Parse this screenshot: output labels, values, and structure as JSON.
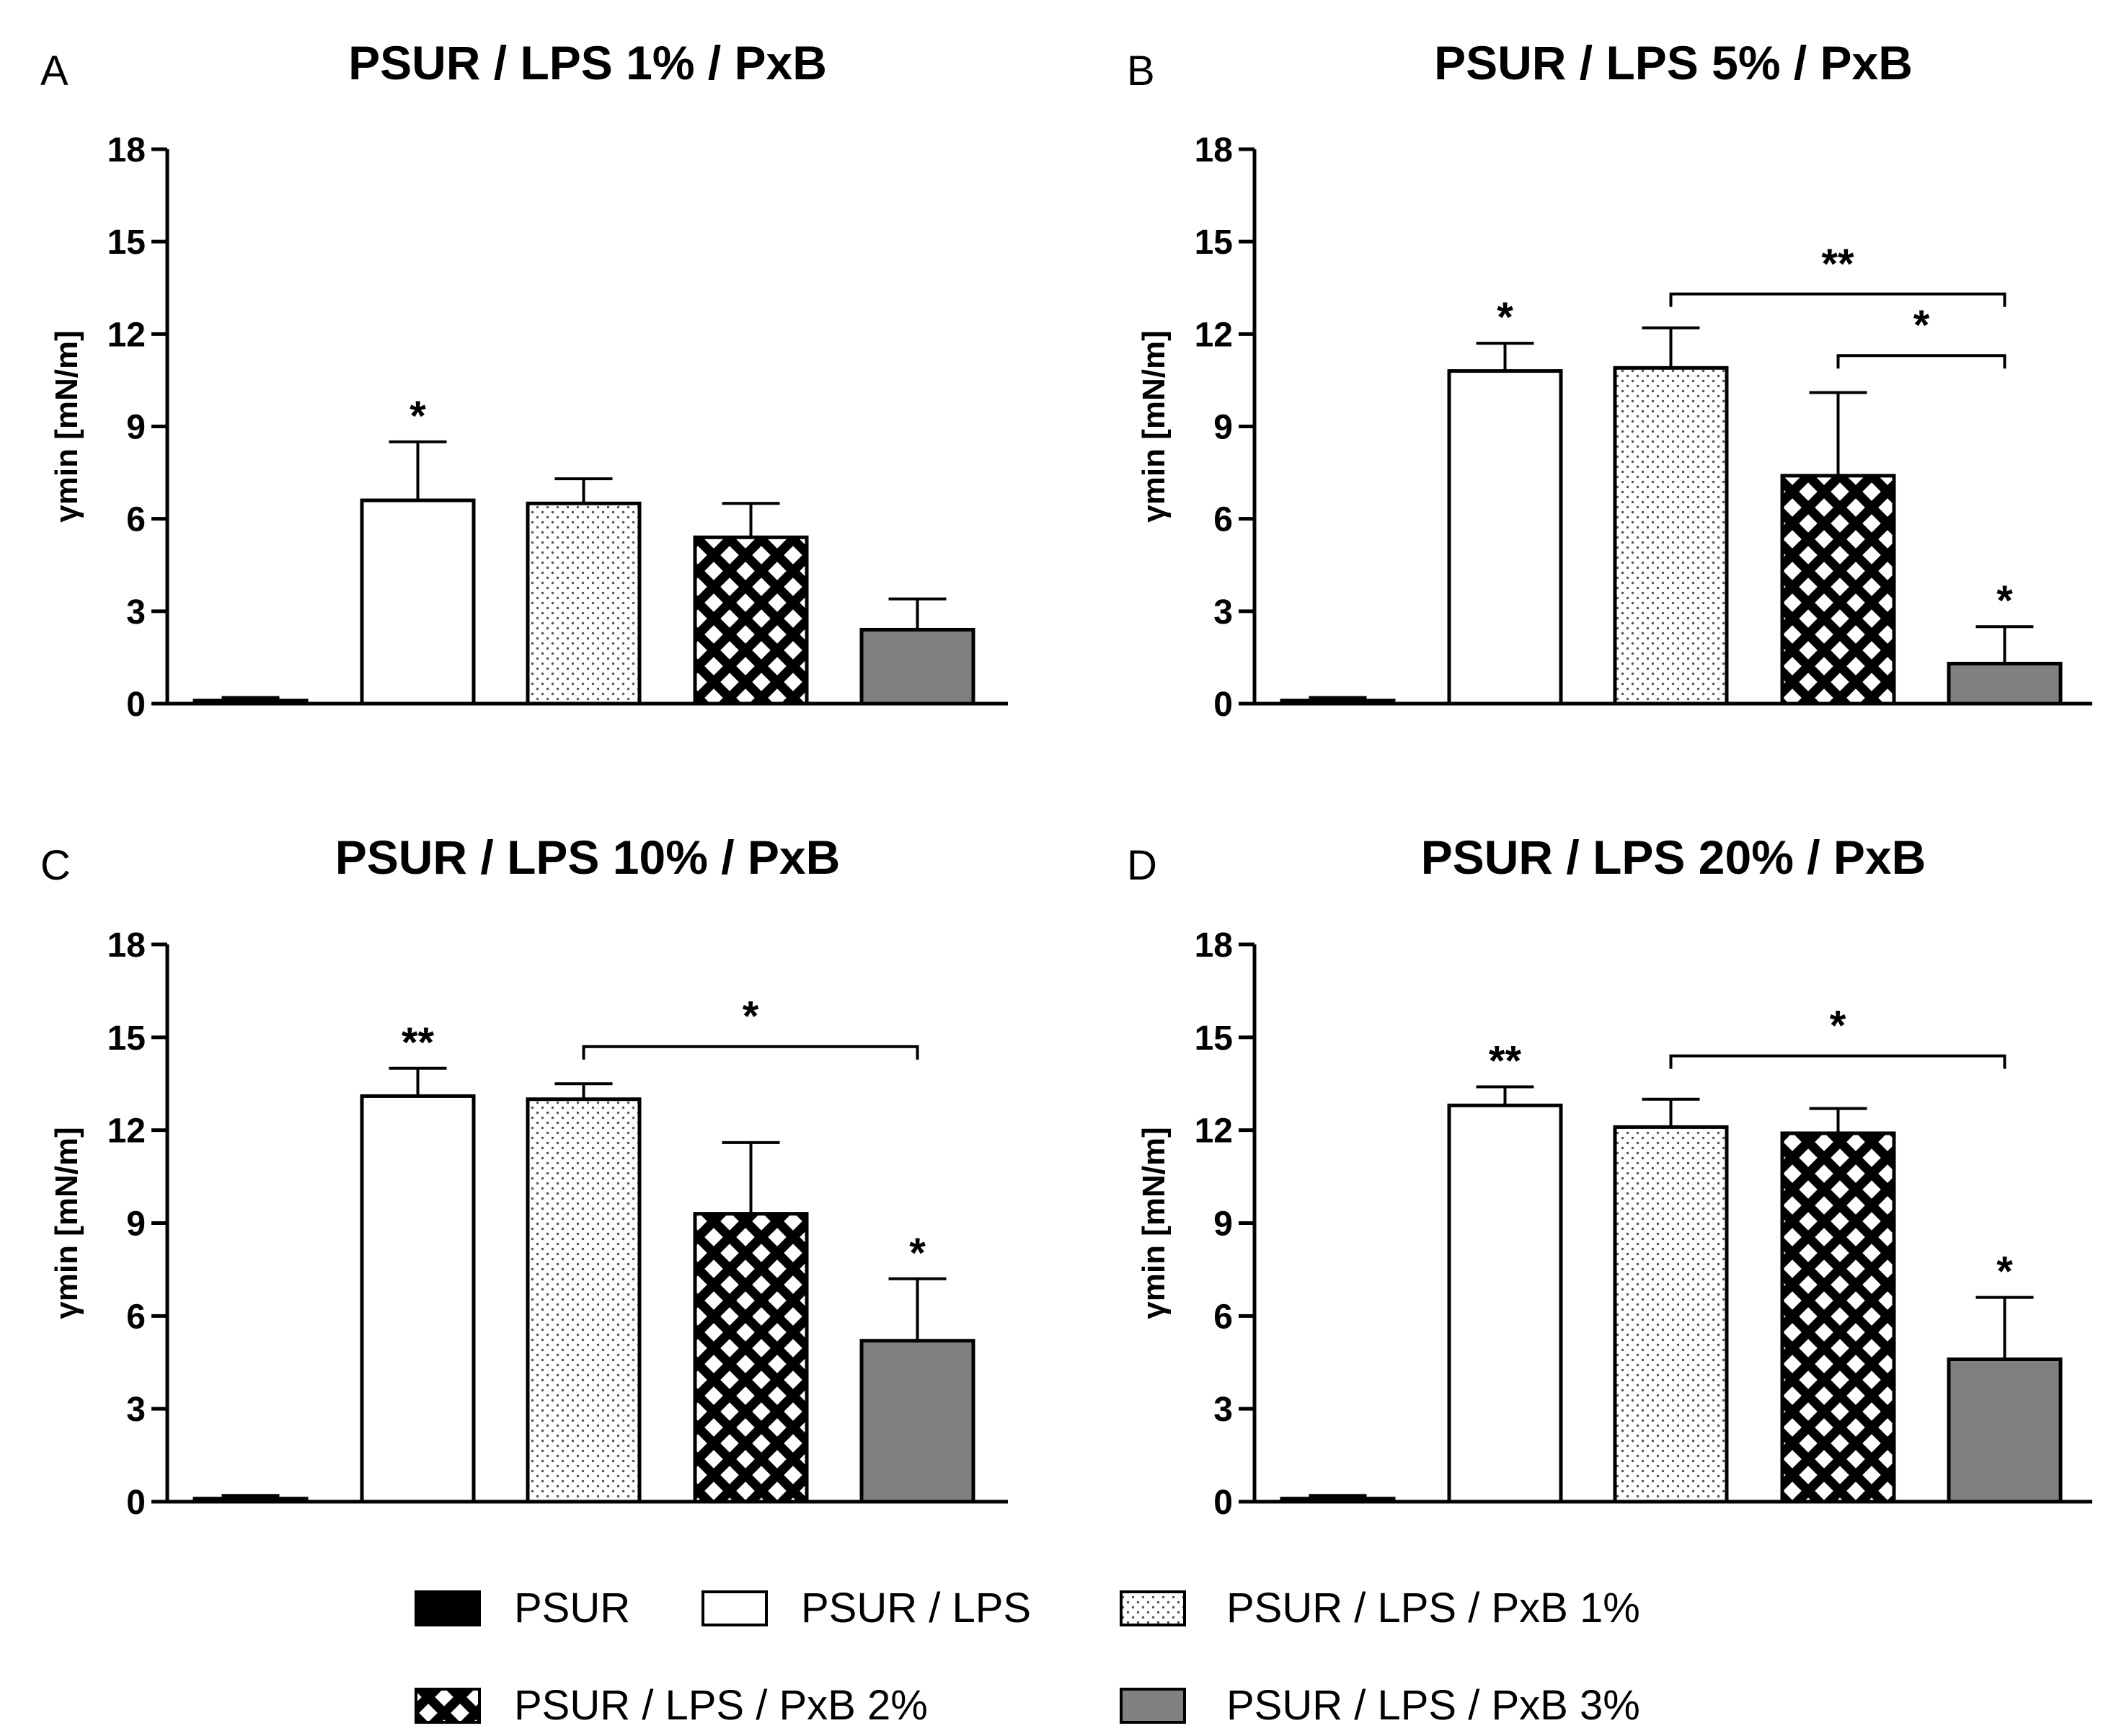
{
  "chart_data": [
    {
      "type": "bar",
      "panel": "A",
      "title": "PSUR / LPS 1% / PxB",
      "ylabel": "γmin [mN/m]",
      "xlabel": "",
      "ylim": [
        0,
        18
      ],
      "yticks": [
        "0",
        "3",
        "6",
        "9",
        "12",
        "15",
        "18"
      ],
      "series": [
        {
          "name": "PSUR",
          "value": 0.1,
          "error": 0.1,
          "sig": ""
        },
        {
          "name": "PSUR / LPS",
          "value": 6.6,
          "error": 1.9,
          "sig": "*"
        },
        {
          "name": "PSUR / LPS / PxB 1%",
          "value": 6.5,
          "error": 0.8,
          "sig": ""
        },
        {
          "name": "PSUR / LPS / PxB 2%",
          "value": 5.4,
          "error": 1.1,
          "sig": ""
        },
        {
          "name": "PSUR / LPS / PxB 3%",
          "value": 2.4,
          "error": 1.0,
          "sig": ""
        }
      ],
      "brackets": []
    },
    {
      "type": "bar",
      "panel": "B",
      "title": "PSUR / LPS 5% / PxB",
      "ylabel": "γmin [mN/m]",
      "xlabel": "",
      "ylim": [
        0,
        18
      ],
      "yticks": [
        "0",
        "3",
        "6",
        "9",
        "12",
        "15",
        "18"
      ],
      "series": [
        {
          "name": "PSUR",
          "value": 0.1,
          "error": 0.1,
          "sig": ""
        },
        {
          "name": "PSUR / LPS",
          "value": 10.8,
          "error": 0.9,
          "sig": "*"
        },
        {
          "name": "PSUR / LPS / PxB 1%",
          "value": 10.9,
          "error": 1.3,
          "sig": ""
        },
        {
          "name": "PSUR / LPS / PxB 2%",
          "value": 7.4,
          "error": 2.7,
          "sig": ""
        },
        {
          "name": "PSUR / LPS / PxB 3%",
          "value": 1.3,
          "error": 1.2,
          "sig": "*"
        }
      ],
      "brackets": [
        {
          "from": 2,
          "to": 4,
          "level": 13.3,
          "label": "**"
        },
        {
          "from": 3,
          "to": 4,
          "level": 11.3,
          "label": "*"
        }
      ]
    },
    {
      "type": "bar",
      "panel": "C",
      "title": "PSUR / LPS 10% / PxB",
      "ylabel": "γmin [mN/m]",
      "xlabel": "",
      "ylim": [
        0,
        18
      ],
      "yticks": [
        "0",
        "3",
        "6",
        "9",
        "12",
        "15",
        "18"
      ],
      "series": [
        {
          "name": "PSUR",
          "value": 0.1,
          "error": 0.1,
          "sig": ""
        },
        {
          "name": "PSUR / LPS",
          "value": 13.1,
          "error": 0.9,
          "sig": "**"
        },
        {
          "name": "PSUR / LPS / PxB 1%",
          "value": 13.0,
          "error": 0.5,
          "sig": ""
        },
        {
          "name": "PSUR / LPS / PxB 2%",
          "value": 9.3,
          "error": 2.3,
          "sig": ""
        },
        {
          "name": "PSUR / LPS / PxB 3%",
          "value": 5.2,
          "error": 2.0,
          "sig": "*"
        }
      ],
      "brackets": [
        {
          "from": 2,
          "to": 4,
          "level": 14.7,
          "label": "*"
        }
      ]
    },
    {
      "type": "bar",
      "panel": "D",
      "title": "PSUR / LPS 20% / PxB",
      "ylabel": "γmin [mN/m]",
      "xlabel": "",
      "ylim": [
        0,
        18
      ],
      "yticks": [
        "0",
        "3",
        "6",
        "9",
        "12",
        "15",
        "18"
      ],
      "series": [
        {
          "name": "PSUR",
          "value": 0.1,
          "error": 0.1,
          "sig": ""
        },
        {
          "name": "PSUR / LPS",
          "value": 12.8,
          "error": 0.6,
          "sig": "**"
        },
        {
          "name": "PSUR / LPS / PxB 1%",
          "value": 12.1,
          "error": 0.9,
          "sig": ""
        },
        {
          "name": "PSUR / LPS / PxB 2%",
          "value": 11.9,
          "error": 0.8,
          "sig": ""
        },
        {
          "name": "PSUR / LPS / PxB 3%",
          "value": 4.6,
          "error": 2.0,
          "sig": "*"
        }
      ],
      "brackets": [
        {
          "from": 2,
          "to": 4,
          "level": 14.4,
          "label": "*"
        }
      ]
    }
  ],
  "legend": [
    {
      "label": "PSUR",
      "style": "solid-black"
    },
    {
      "label": "PSUR / LPS",
      "style": "white"
    },
    {
      "label": "PSUR / LPS / PxB 1%",
      "style": "dotted"
    },
    {
      "label": "PSUR / LPS / PxB 2%",
      "style": "crosshatch"
    },
    {
      "label": "PSUR / LPS / PxB 3%",
      "style": "solid-gray"
    }
  ],
  "colors": {
    "axis": "#000000",
    "gray_fill": "#808080",
    "background": "#ffffff"
  }
}
